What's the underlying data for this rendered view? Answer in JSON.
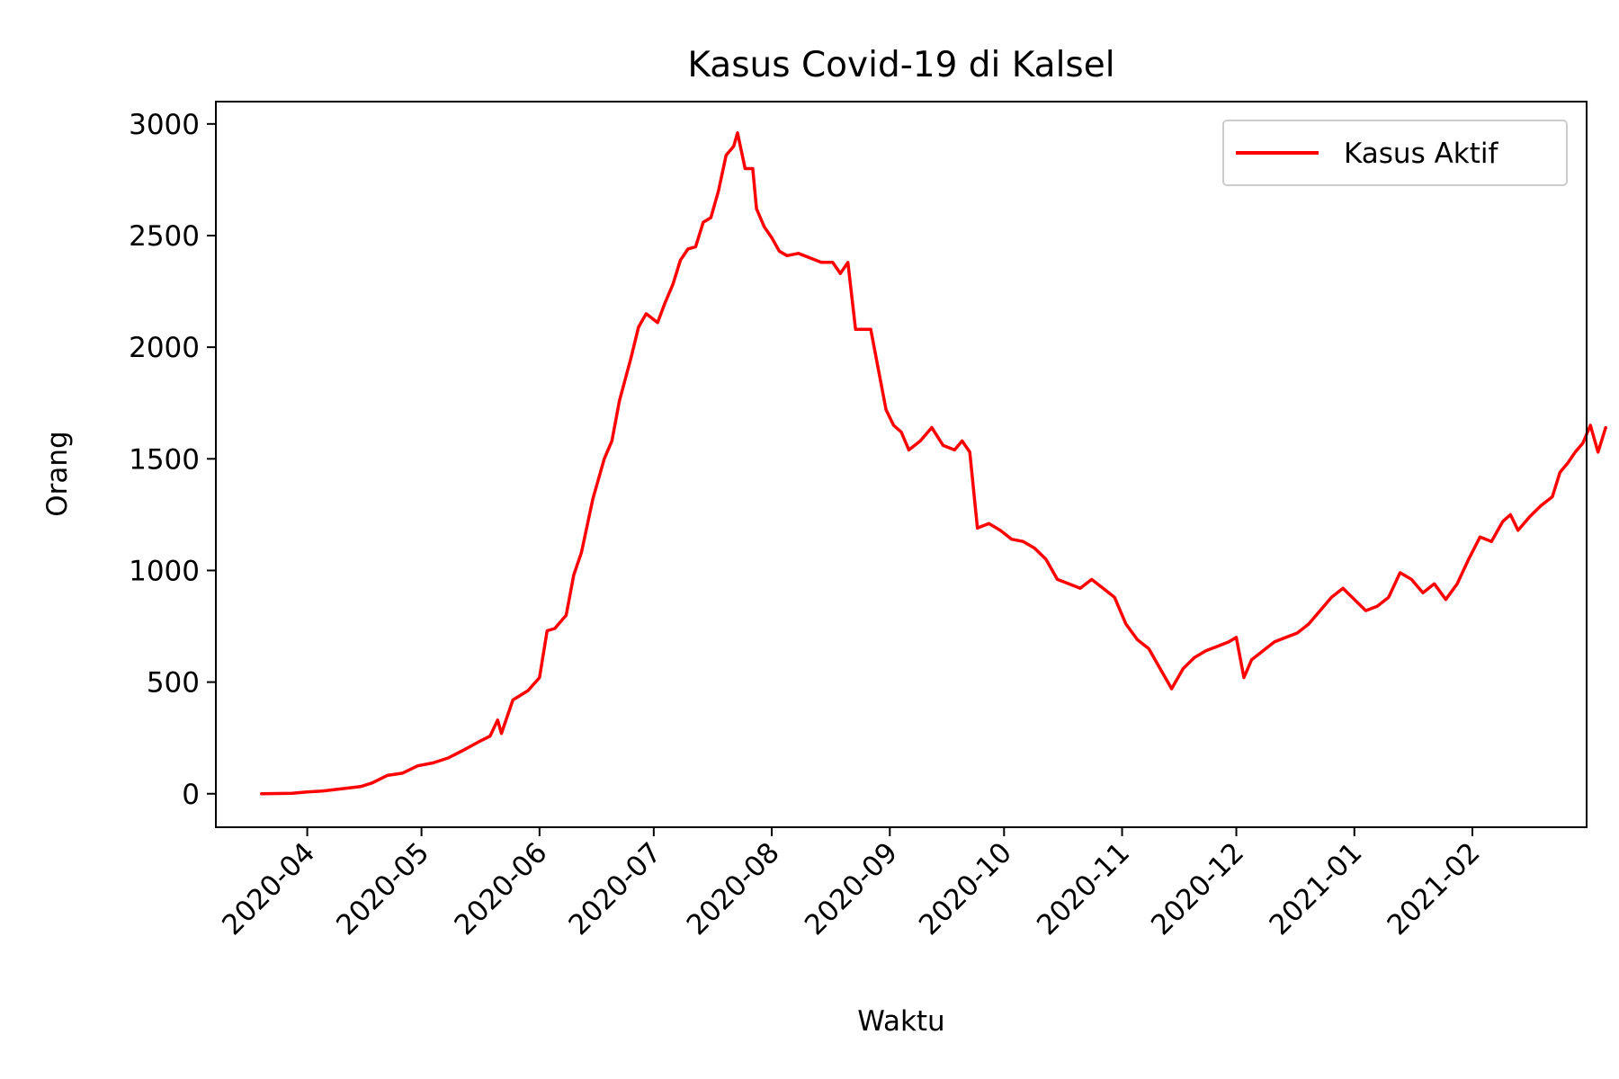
{
  "chart_data": {
    "type": "line",
    "title": "Kasus Covid-19 di Kalsel",
    "xlabel": "Waktu",
    "ylabel": "Orang",
    "xlim": [
      "2020-03-08",
      "2021-03-03"
    ],
    "ylim": [
      -150,
      3100
    ],
    "x_ticks": [
      "2020-04",
      "2020-05",
      "2020-06",
      "2020-07",
      "2020-08",
      "2020-09",
      "2020-10",
      "2020-11",
      "2020-12",
      "2021-01",
      "2021-02"
    ],
    "y_ticks": [
      0,
      500,
      1000,
      1500,
      2000,
      2500,
      3000
    ],
    "grid": false,
    "legend": {
      "position": "top-right",
      "entries": [
        "Kasus Aktif"
      ]
    },
    "colors": {
      "Kasus Aktif": "#ff0000"
    },
    "series": [
      {
        "name": "Kasus Aktif",
        "points": [
          [
            "2020-03-20",
            0
          ],
          [
            "2020-03-28",
            2
          ],
          [
            "2020-04-01",
            8
          ],
          [
            "2020-04-05",
            12
          ],
          [
            "2020-04-10",
            22
          ],
          [
            "2020-04-15",
            32
          ],
          [
            "2020-04-18",
            48
          ],
          [
            "2020-04-22",
            82
          ],
          [
            "2020-04-26",
            92
          ],
          [
            "2020-04-30",
            125
          ],
          [
            "2020-05-04",
            138
          ],
          [
            "2020-05-08",
            160
          ],
          [
            "2020-05-12",
            195
          ],
          [
            "2020-05-16",
            232
          ],
          [
            "2020-05-19",
            258
          ],
          [
            "2020-05-21",
            330
          ],
          [
            "2020-05-22",
            270
          ],
          [
            "2020-05-25",
            420
          ],
          [
            "2020-05-29",
            462
          ],
          [
            "2020-06-01",
            520
          ],
          [
            "2020-06-03",
            730
          ],
          [
            "2020-06-05",
            740
          ],
          [
            "2020-06-08",
            800
          ],
          [
            "2020-06-10",
            980
          ],
          [
            "2020-06-12",
            1080
          ],
          [
            "2020-06-15",
            1320
          ],
          [
            "2020-06-18",
            1500
          ],
          [
            "2020-06-20",
            1580
          ],
          [
            "2020-06-22",
            1760
          ],
          [
            "2020-06-25",
            1950
          ],
          [
            "2020-06-27",
            2090
          ],
          [
            "2020-06-29",
            2150
          ],
          [
            "2020-07-02",
            2110
          ],
          [
            "2020-07-04",
            2200
          ],
          [
            "2020-07-06",
            2280
          ],
          [
            "2020-07-08",
            2390
          ],
          [
            "2020-07-10",
            2440
          ],
          [
            "2020-07-12",
            2450
          ],
          [
            "2020-07-14",
            2560
          ],
          [
            "2020-07-16",
            2580
          ],
          [
            "2020-07-18",
            2700
          ],
          [
            "2020-07-20",
            2860
          ],
          [
            "2020-07-22",
            2900
          ],
          [
            "2020-07-23",
            2960
          ],
          [
            "2020-07-25",
            2800
          ],
          [
            "2020-07-27",
            2800
          ],
          [
            "2020-07-28",
            2620
          ],
          [
            "2020-07-30",
            2540
          ],
          [
            "2020-08-01",
            2490
          ],
          [
            "2020-08-03",
            2430
          ],
          [
            "2020-08-05",
            2410
          ],
          [
            "2020-08-08",
            2420
          ],
          [
            "2020-08-11",
            2400
          ],
          [
            "2020-08-14",
            2380
          ],
          [
            "2020-08-17",
            2380
          ],
          [
            "2020-08-19",
            2330
          ],
          [
            "2020-08-21",
            2380
          ],
          [
            "2020-08-23",
            2080
          ],
          [
            "2020-08-27",
            2080
          ],
          [
            "2020-08-29",
            1900
          ],
          [
            "2020-08-31",
            1720
          ],
          [
            "2020-09-02",
            1650
          ],
          [
            "2020-09-04",
            1620
          ],
          [
            "2020-09-06",
            1540
          ],
          [
            "2020-09-09",
            1580
          ],
          [
            "2020-09-12",
            1640
          ],
          [
            "2020-09-15",
            1560
          ],
          [
            "2020-09-18",
            1540
          ],
          [
            "2020-09-20",
            1580
          ],
          [
            "2020-09-22",
            1530
          ],
          [
            "2020-09-24",
            1190
          ],
          [
            "2020-09-27",
            1210
          ],
          [
            "2020-09-30",
            1180
          ],
          [
            "2020-10-03",
            1140
          ],
          [
            "2020-10-06",
            1130
          ],
          [
            "2020-10-09",
            1100
          ],
          [
            "2020-10-12",
            1050
          ],
          [
            "2020-10-15",
            960
          ],
          [
            "2020-10-18",
            940
          ],
          [
            "2020-10-21",
            920
          ],
          [
            "2020-10-24",
            960
          ],
          [
            "2020-10-27",
            920
          ],
          [
            "2020-10-30",
            880
          ],
          [
            "2020-11-02",
            760
          ],
          [
            "2020-11-05",
            690
          ],
          [
            "2020-11-08",
            650
          ],
          [
            "2020-11-11",
            560
          ],
          [
            "2020-11-14",
            470
          ],
          [
            "2020-11-17",
            560
          ],
          [
            "2020-11-20",
            610
          ],
          [
            "2020-11-23",
            640
          ],
          [
            "2020-11-26",
            660
          ],
          [
            "2020-11-29",
            680
          ],
          [
            "2020-12-01",
            700
          ],
          [
            "2020-12-03",
            520
          ],
          [
            "2020-12-05",
            600
          ],
          [
            "2020-12-08",
            640
          ],
          [
            "2020-12-11",
            680
          ],
          [
            "2020-12-14",
            700
          ],
          [
            "2020-12-17",
            720
          ],
          [
            "2020-12-20",
            760
          ],
          [
            "2020-12-23",
            820
          ],
          [
            "2020-12-26",
            880
          ],
          [
            "2020-12-29",
            920
          ],
          [
            "2021-01-01",
            870
          ],
          [
            "2021-01-04",
            820
          ],
          [
            "2021-01-07",
            840
          ],
          [
            "2021-01-10",
            880
          ],
          [
            "2021-01-13",
            990
          ],
          [
            "2021-01-16",
            960
          ],
          [
            "2021-01-19",
            900
          ],
          [
            "2021-01-22",
            940
          ],
          [
            "2021-01-25",
            870
          ],
          [
            "2021-01-28",
            940
          ],
          [
            "2021-01-31",
            1050
          ],
          [
            "2021-02-03",
            1150
          ],
          [
            "2021-02-06",
            1130
          ],
          [
            "2021-02-09",
            1220
          ],
          [
            "2021-02-11",
            1250
          ],
          [
            "2021-02-13",
            1180
          ],
          [
            "2021-02-16",
            1240
          ],
          [
            "2021-02-19",
            1290
          ],
          [
            "2021-02-22",
            1330
          ],
          [
            "2021-02-24",
            1440
          ],
          [
            "2021-02-26",
            1480
          ],
          [
            "2021-02-28",
            1530
          ],
          [
            "2021-03-02",
            1570
          ],
          [
            "2021-03-04",
            1650
          ],
          [
            "2021-03-06",
            1530
          ],
          [
            "2021-03-08",
            1640
          ]
        ]
      }
    ]
  }
}
